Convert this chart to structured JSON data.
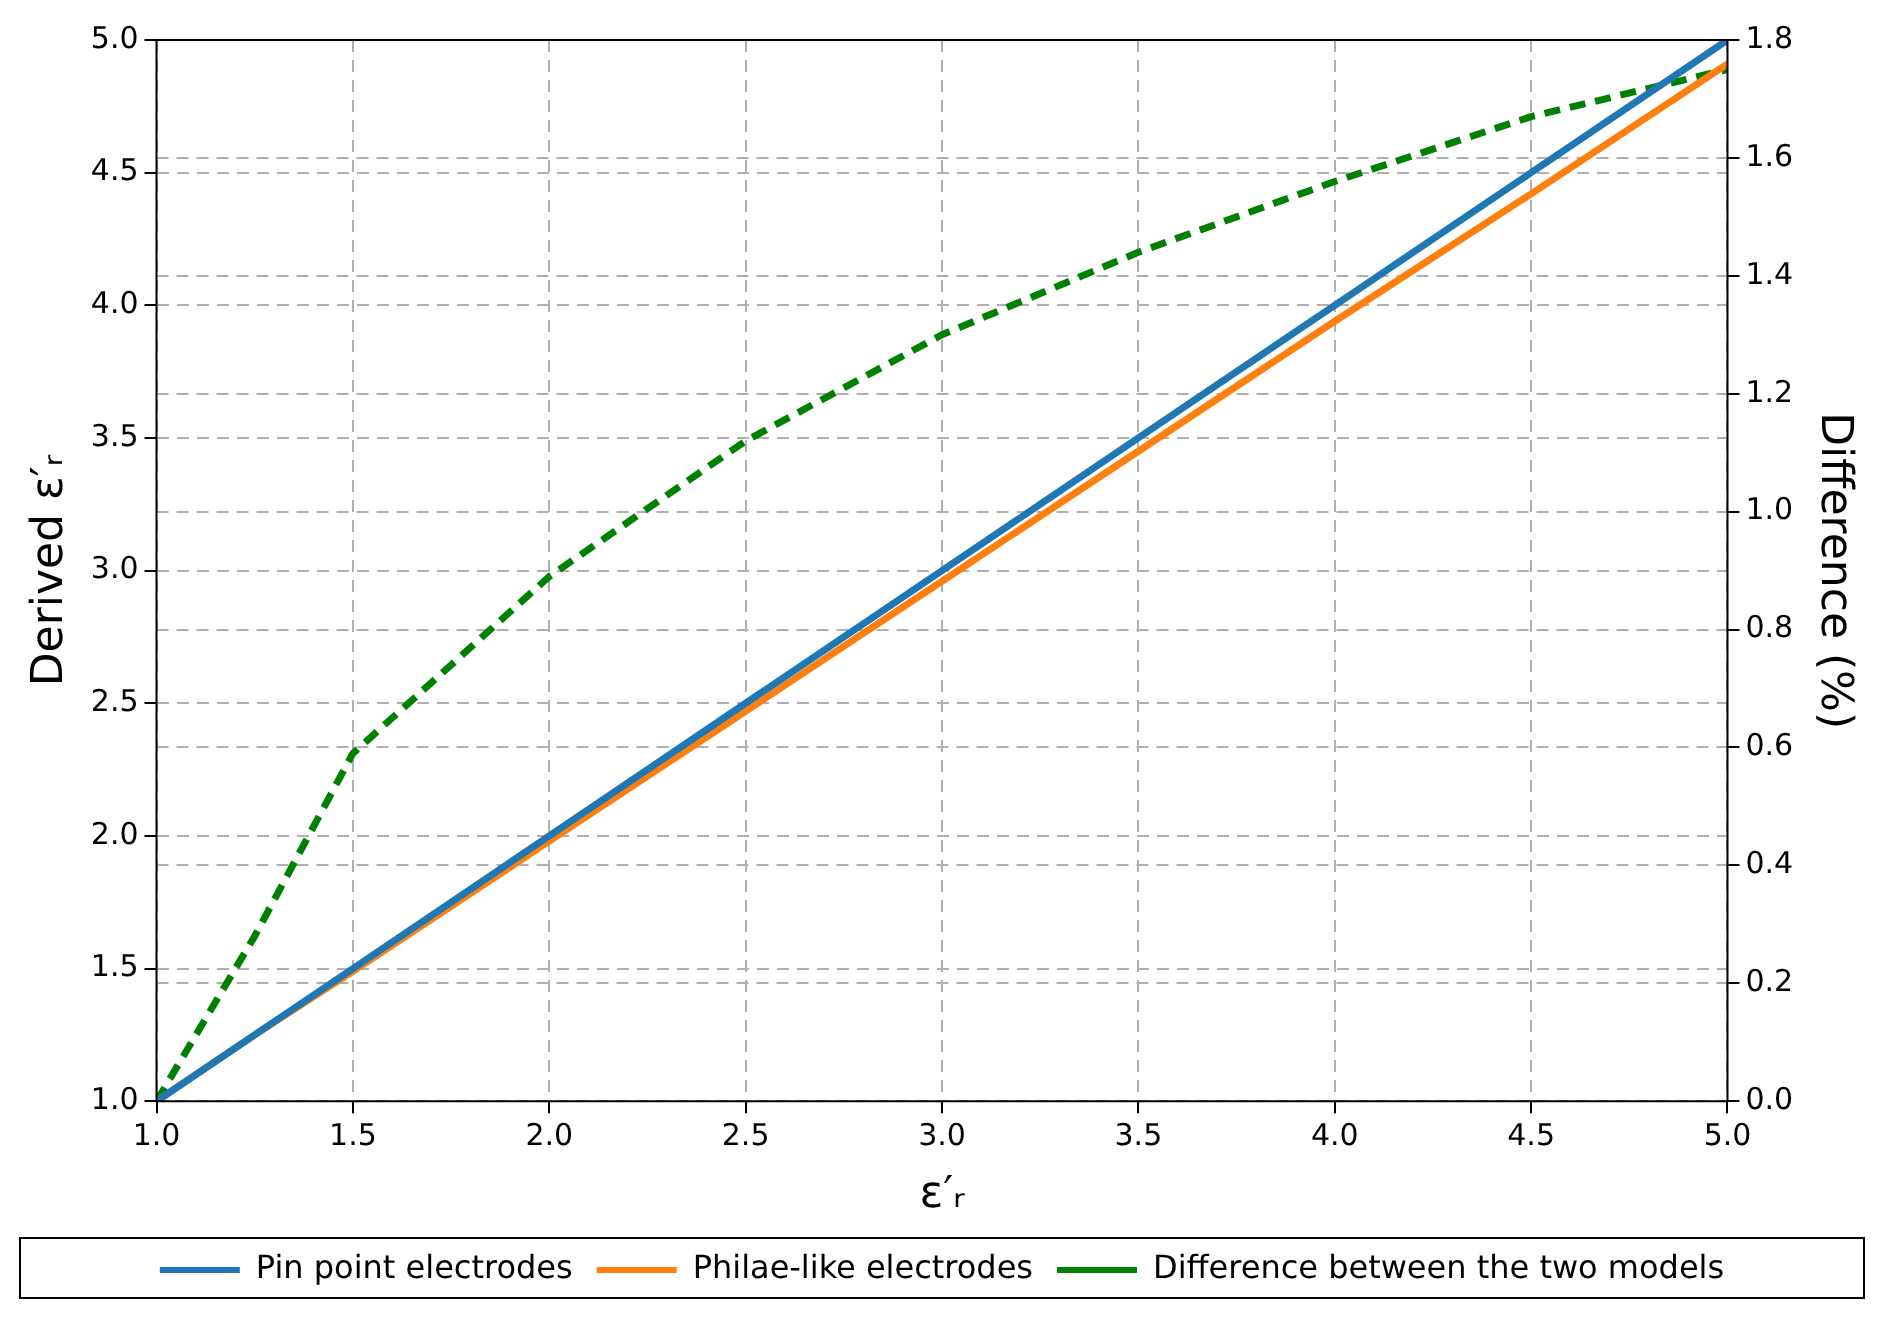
{
  "chart_data": {
    "type": "line",
    "xlabel": "ε′ᵣ",
    "ylabel": "Derived ε′ᵣ",
    "y2label": "Difference (%)",
    "x": [
      1.0,
      1.25,
      1.5,
      2.0,
      2.5,
      3.0,
      3.5,
      4.0,
      4.5,
      5.0
    ],
    "series": [
      {
        "name": "Pin point electrodes",
        "color": "#1f77b4",
        "values": [
          1.0,
          1.25,
          1.5,
          2.0,
          2.5,
          3.0,
          3.5,
          4.0,
          4.5,
          5.0
        ]
      },
      {
        "name": "Philae-like electrodes",
        "color": "#ff7f0e",
        "values": [
          1.0,
          1.25,
          1.49,
          1.98,
          2.47,
          2.96,
          3.45,
          3.94,
          4.42,
          4.91
        ]
      },
      {
        "name": "Difference between the two models",
        "color": "#008000",
        "axis": "y2",
        "line_style": "dashed",
        "values": [
          0.0,
          0.28,
          0.59,
          0.89,
          1.12,
          1.3,
          1.44,
          1.56,
          1.67,
          1.75
        ]
      }
    ],
    "xlim": [
      1.0,
      5.0
    ],
    "xticks": [
      {
        "value": 1,
        "label": "1.0"
      },
      {
        "value": 1.5,
        "label": "1.5"
      },
      {
        "value": 2,
        "label": "2.0"
      },
      {
        "value": 2.5,
        "label": "2.5"
      },
      {
        "value": 3,
        "label": "3.0"
      },
      {
        "value": 3.5,
        "label": "3.5"
      },
      {
        "value": 4,
        "label": "4.0"
      },
      {
        "value": 4.5,
        "label": "4.5"
      },
      {
        "value": 5,
        "label": "5.0"
      }
    ],
    "ylim": [
      1.0,
      5.0
    ],
    "yticks": [
      {
        "value": 1,
        "label": "1.0"
      },
      {
        "value": 1.5,
        "label": "1.5"
      },
      {
        "value": 2,
        "label": "2.0"
      },
      {
        "value": 2.5,
        "label": "2.5"
      },
      {
        "value": 3,
        "label": "3.0"
      },
      {
        "value": 3.5,
        "label": "3.5"
      },
      {
        "value": 4,
        "label": "4.0"
      },
      {
        "value": 4.5,
        "label": "4.5"
      },
      {
        "value": 5,
        "label": "5.0"
      }
    ],
    "y2lim": [
      0.0,
      1.8
    ],
    "y2ticks": [
      {
        "value": 0,
        "label": "0.0"
      },
      {
        "value": 0.2,
        "label": "0.2"
      },
      {
        "value": 0.4,
        "label": "0.4"
      },
      {
        "value": 0.6,
        "label": "0.6"
      },
      {
        "value": 0.8,
        "label": "0.8"
      },
      {
        "value": 1,
        "label": "1.0"
      },
      {
        "value": 1.2,
        "label": "1.2"
      },
      {
        "value": 1.4,
        "label": "1.4"
      },
      {
        "value": 1.6,
        "label": "1.6"
      },
      {
        "value": 1.8,
        "label": "1.8"
      }
    ],
    "grid": true,
    "legend": "bottom",
    "marker": "none"
  }
}
